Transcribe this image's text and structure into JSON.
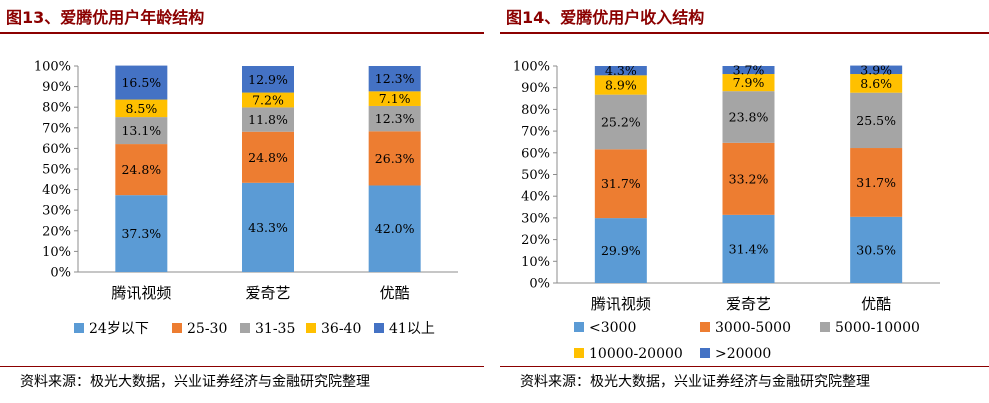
{
  "left": {
    "title": "图13、爱腾优用户年龄结构",
    "source": "资料来源：极光大数据，兴业证券经济与金融研究院整理",
    "chart_data": {
      "type": "bar",
      "stacked": true,
      "categories": [
        "腾讯视频",
        "爱奇艺",
        "优酷"
      ],
      "y_ticks": [
        "0%",
        "10%",
        "20%",
        "30%",
        "40%",
        "50%",
        "60%",
        "70%",
        "80%",
        "90%",
        "100%"
      ],
      "ylim": [
        0,
        100
      ],
      "legend_position": "bottom",
      "series": [
        {
          "name": "24岁以下",
          "color": "#5b9bd5",
          "values": [
            37.3,
            43.3,
            42.0
          ],
          "labels": [
            "37.3%",
            "43.3%",
            "42.0%"
          ]
        },
        {
          "name": "25-30",
          "color": "#ed7d31",
          "values": [
            24.8,
            24.8,
            26.3
          ],
          "labels": [
            "24.8%",
            "24.8%",
            "26.3%"
          ]
        },
        {
          "name": "31-35",
          "color": "#a5a5a5",
          "values": [
            13.1,
            11.8,
            12.3
          ],
          "labels": [
            "13.1%",
            "11.8%",
            "12.3%"
          ]
        },
        {
          "name": "36-40",
          "color": "#ffc000",
          "values": [
            8.5,
            7.2,
            7.1
          ],
          "labels": [
            "8.5%",
            "7.2%",
            "7.1%"
          ]
        },
        {
          "name": "41以上",
          "color": "#4472c4",
          "values": [
            16.5,
            12.9,
            12.3
          ],
          "labels": [
            "16.5%",
            "12.9%",
            "12.3%"
          ]
        }
      ]
    }
  },
  "right": {
    "title": "图14、爱腾优用户收入结构",
    "source": "资料来源：极光大数据，兴业证券经济与金融研究院整理",
    "chart_data": {
      "type": "bar",
      "stacked": true,
      "categories": [
        "腾讯视频",
        "爱奇艺",
        "优酷"
      ],
      "y_ticks": [
        "0%",
        "10%",
        "20%",
        "30%",
        "40%",
        "50%",
        "60%",
        "70%",
        "80%",
        "90%",
        "100%"
      ],
      "ylim": [
        0,
        100
      ],
      "legend_position": "bottom",
      "series": [
        {
          "name": "<3000",
          "color": "#5b9bd5",
          "values": [
            29.9,
            31.4,
            30.5
          ],
          "labels": [
            "29.9%",
            "31.4%",
            "30.5%"
          ]
        },
        {
          "name": "3000-5000",
          "color": "#ed7d31",
          "values": [
            31.7,
            33.2,
            31.7
          ],
          "labels": [
            "31.7%",
            "33.2%",
            "31.7%"
          ]
        },
        {
          "name": "5000-10000",
          "color": "#a5a5a5",
          "values": [
            25.2,
            23.8,
            25.5
          ],
          "labels": [
            "25.2%",
            "23.8%",
            "25.5%"
          ]
        },
        {
          "name": "10000-20000",
          "color": "#ffc000",
          "values": [
            8.9,
            7.9,
            8.6
          ],
          "labels": [
            "8.9%",
            "7.9%",
            "8.6%"
          ]
        },
        {
          "name": ">20000",
          "color": "#4472c4",
          "values": [
            4.3,
            3.7,
            3.9
          ],
          "labels": [
            "4.3%",
            "3.7%",
            "3.9%"
          ]
        }
      ]
    }
  }
}
